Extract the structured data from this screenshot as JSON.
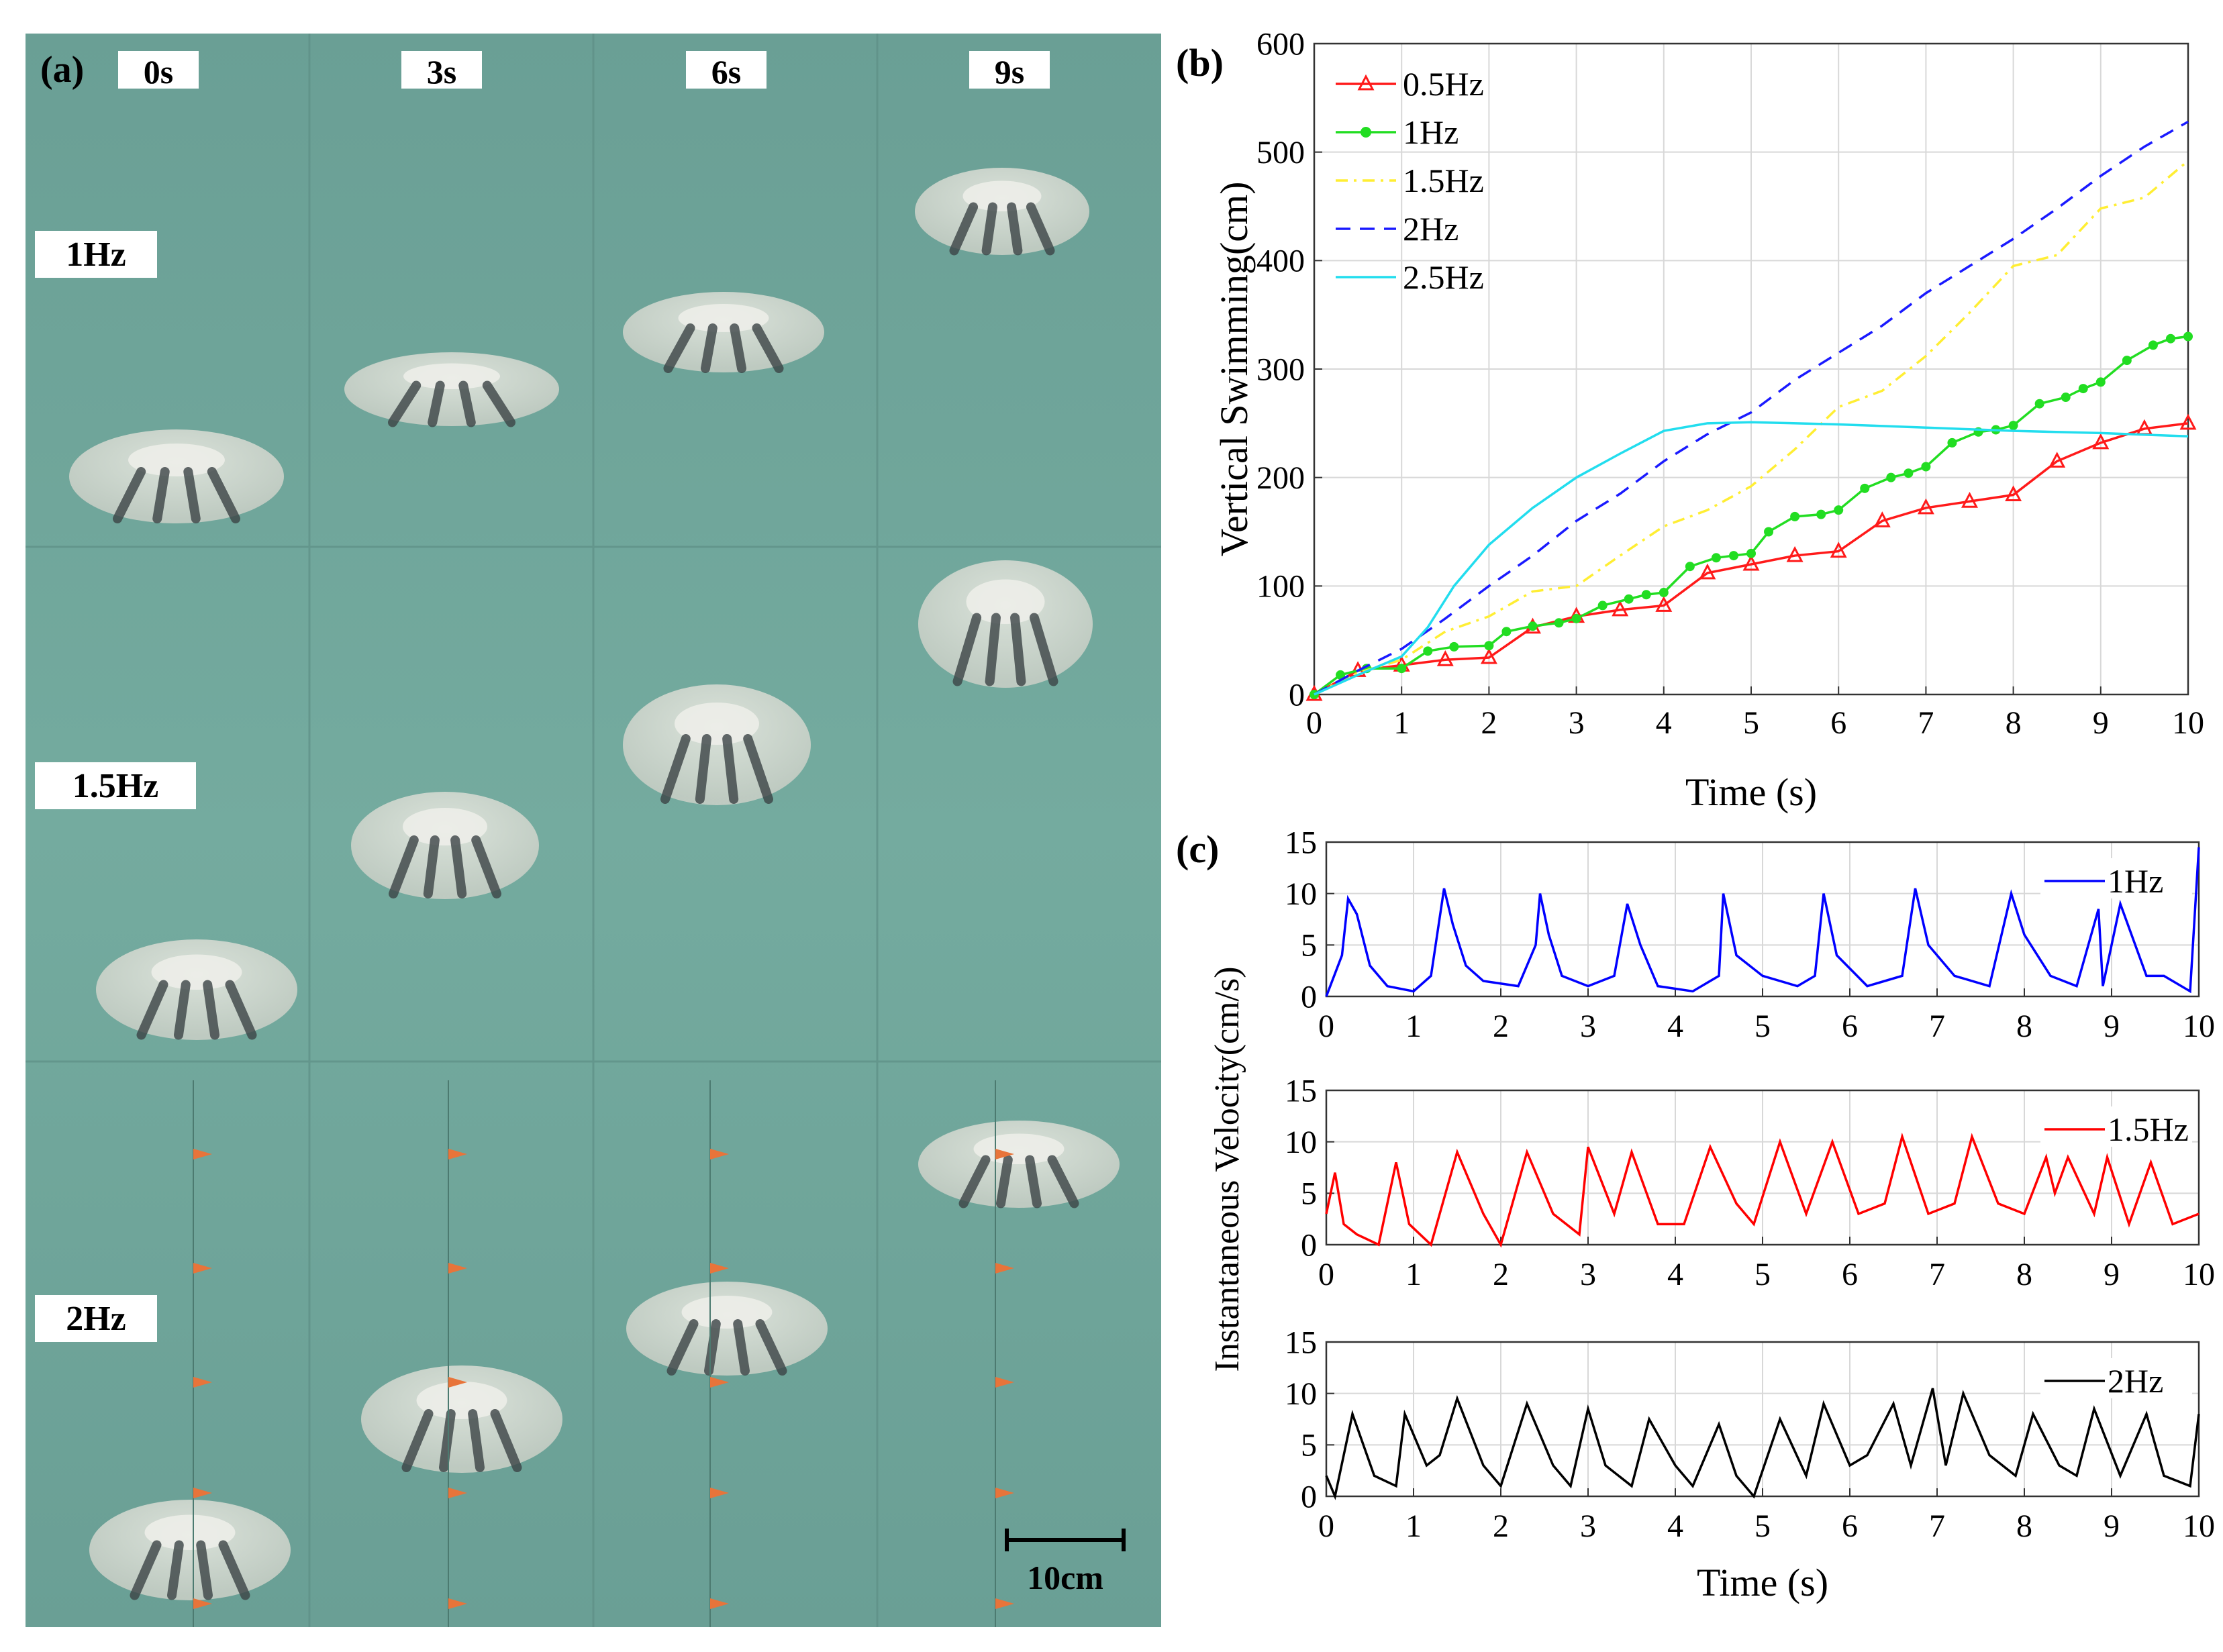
{
  "panel_a": {
    "letter": "(a)",
    "time_labels": [
      "0s",
      "3s",
      "6s",
      "9s"
    ],
    "row_labels": [
      "1Hz",
      "1.5Hz",
      "2Hz"
    ],
    "scale_bar_label": "10cm",
    "water_color": "#6fa69b"
  },
  "panel_b_letter": "(b)",
  "panel_c_letter": "(c)",
  "chart_data": [
    {
      "type": "line",
      "title": "",
      "xlabel": "Time (s)",
      "ylabel": "Vertical Swimming(cm)",
      "xlim": [
        0,
        10
      ],
      "ylim": [
        0,
        600
      ],
      "xticks": [
        "0",
        "1",
        "2",
        "3",
        "4",
        "5",
        "6",
        "7",
        "8",
        "9",
        "10"
      ],
      "yticks": [
        "0",
        "100",
        "200",
        "300",
        "400",
        "500",
        "600"
      ],
      "grid": true,
      "legend_position": "top-left",
      "series": [
        {
          "name": "0.5Hz",
          "color": "#ff1a1a",
          "style": "solid-triangle-markers",
          "x": [
            0,
            0.5,
            1,
            1.5,
            2,
            2.5,
            3,
            3.5,
            4,
            4.5,
            5,
            5.5,
            6,
            6.5,
            7,
            7.5,
            8,
            8.5,
            9,
            9.5,
            10
          ],
          "y": [
            0,
            22,
            27,
            32,
            34,
            62,
            72,
            78,
            82,
            112,
            120,
            128,
            132,
            160,
            172,
            178,
            184,
            215,
            232,
            245,
            250
          ]
        },
        {
          "name": "1Hz",
          "color": "#22dd22",
          "style": "solid-dot-markers",
          "x": [
            0,
            0.3,
            0.6,
            1,
            1.3,
            1.6,
            2,
            2.2,
            2.5,
            2.8,
            3,
            3.3,
            3.6,
            3.8,
            4,
            4.3,
            4.6,
            4.8,
            5,
            5.2,
            5.5,
            5.8,
            6,
            6.3,
            6.6,
            6.8,
            7,
            7.3,
            7.6,
            7.8,
            8,
            8.3,
            8.6,
            8.8,
            9,
            9.3,
            9.6,
            9.8,
            10
          ],
          "y": [
            0,
            18,
            24,
            24,
            40,
            44,
            45,
            58,
            63,
            66,
            70,
            82,
            88,
            92,
            94,
            118,
            126,
            128,
            130,
            150,
            164,
            166,
            170,
            190,
            200,
            204,
            210,
            232,
            242,
            244,
            248,
            268,
            274,
            282,
            288,
            308,
            322,
            328,
            330
          ]
        },
        {
          "name": "1.5Hz",
          "color": "#ffee33",
          "style": "dash-dot",
          "x": [
            0,
            0.5,
            1,
            1.5,
            2,
            2.5,
            3,
            3.5,
            4,
            4.5,
            5,
            5.5,
            6,
            6.5,
            7,
            7.5,
            8,
            8.5,
            9,
            9.5,
            10
          ],
          "y": [
            0,
            20,
            32,
            58,
            72,
            95,
            100,
            128,
            155,
            170,
            192,
            226,
            265,
            280,
            312,
            352,
            395,
            405,
            448,
            458,
            492
          ]
        },
        {
          "name": "2Hz",
          "color": "#1a1aff",
          "style": "dashed",
          "x": [
            0,
            0.5,
            1,
            1.5,
            2,
            2.5,
            3,
            3.5,
            4,
            4.5,
            5,
            5.5,
            6,
            6.5,
            7,
            7.5,
            8,
            8.5,
            9,
            9.5,
            10
          ],
          "y": [
            0,
            22,
            42,
            70,
            100,
            128,
            160,
            185,
            215,
            240,
            260,
            290,
            315,
            340,
            370,
            395,
            420,
            448,
            478,
            505,
            528
          ]
        },
        {
          "name": "2.5Hz",
          "color": "#22ddee",
          "style": "solid",
          "x": [
            0,
            0.5,
            1,
            1.3,
            1.6,
            2,
            2.5,
            3,
            3.5,
            4,
            4.5,
            5,
            6,
            7,
            8,
            9,
            10
          ],
          "y": [
            0,
            18,
            35,
            62,
            100,
            138,
            172,
            200,
            222,
            243,
            250,
            251,
            249,
            246,
            243,
            241,
            238
          ]
        }
      ]
    },
    {
      "type": "line",
      "title": "",
      "xlabel": "",
      "ylabel": "Instantaneous Velocity(cm/s)",
      "xlim": [
        0,
        10
      ],
      "ylim": [
        0,
        15
      ],
      "xticks": [
        "0",
        "1",
        "2",
        "3",
        "4",
        "5",
        "6",
        "7",
        "8",
        "9",
        "10"
      ],
      "yticks": [
        "0",
        "5",
        "10",
        "15"
      ],
      "grid": true,
      "legend_position": "top-right",
      "series": [
        {
          "name": "1Hz",
          "color": "#0000ff",
          "x": [
            0,
            0.18,
            0.25,
            0.35,
            0.5,
            0.7,
            1.0,
            1.2,
            1.35,
            1.45,
            1.6,
            1.8,
            2.2,
            2.4,
            2.45,
            2.55,
            2.7,
            3.0,
            3.3,
            3.45,
            3.6,
            3.8,
            4.2,
            4.5,
            4.55,
            4.7,
            5.0,
            5.4,
            5.6,
            5.7,
            5.85,
            6.2,
            6.6,
            6.75,
            6.9,
            7.2,
            7.6,
            7.85,
            8.0,
            8.3,
            8.6,
            8.85,
            8.9,
            9.1,
            9.4,
            9.6,
            9.9,
            10.0
          ],
          "y": [
            0,
            4,
            9.5,
            8,
            3,
            1,
            0.5,
            2,
            10.5,
            7,
            3,
            1.5,
            1,
            5,
            10,
            6,
            2,
            1,
            2,
            9,
            5,
            1,
            0.5,
            2,
            10,
            4,
            2,
            1,
            2,
            10,
            4,
            1,
            2,
            10.5,
            5,
            2,
            1,
            10,
            6,
            2,
            1,
            8.5,
            1,
            9,
            2,
            2,
            0.5,
            14.5
          ]
        },
        {
          "name": "1.5Hz",
          "color": "#ff0000",
          "x": [
            0,
            0.1,
            0.2,
            0.35,
            0.6,
            0.8,
            0.95,
            1.2,
            1.5,
            1.8,
            2.0,
            2.3,
            2.6,
            2.9,
            3.0,
            3.3,
            3.5,
            3.8,
            4.1,
            4.4,
            4.7,
            4.9,
            5.2,
            5.5,
            5.8,
            6.1,
            6.4,
            6.6,
            6.9,
            7.2,
            7.4,
            7.7,
            8.0,
            8.25,
            8.35,
            8.5,
            8.8,
            8.95,
            9.2,
            9.45,
            9.7,
            10.0
          ],
          "y": [
            3,
            7,
            2,
            1,
            0,
            8,
            2,
            0,
            9,
            3,
            0,
            9,
            3,
            1,
            9.5,
            3,
            9,
            2,
            2,
            9.5,
            4,
            2,
            10,
            3,
            10,
            3,
            4,
            10.5,
            3,
            4,
            10.5,
            4,
            3,
            8.5,
            5,
            8.5,
            3,
            8.5,
            2,
            8,
            2,
            3
          ]
        },
        {
          "name": "2Hz",
          "color": "#000000",
          "x": [
            0,
            0.1,
            0.3,
            0.55,
            0.8,
            0.9,
            1.15,
            1.3,
            1.5,
            1.8,
            2.0,
            2.3,
            2.6,
            2.8,
            3.0,
            3.2,
            3.5,
            3.7,
            4.0,
            4.2,
            4.5,
            4.7,
            4.9,
            5.2,
            5.5,
            5.7,
            6.0,
            6.2,
            6.5,
            6.7,
            6.95,
            7.1,
            7.3,
            7.6,
            7.9,
            8.1,
            8.4,
            8.6,
            8.8,
            9.1,
            9.4,
            9.6,
            9.9,
            10.0
          ],
          "y": [
            2,
            0,
            8,
            2,
            1,
            8,
            3,
            4,
            9.5,
            3,
            1,
            9,
            3,
            1,
            8.5,
            3,
            1,
            7.5,
            3,
            1,
            7,
            2,
            0,
            7.5,
            2,
            9,
            3,
            4,
            9,
            3,
            10.5,
            3,
            10,
            4,
            2,
            8,
            3,
            2,
            8.5,
            2,
            8,
            2,
            1,
            8
          ]
        }
      ]
    }
  ]
}
